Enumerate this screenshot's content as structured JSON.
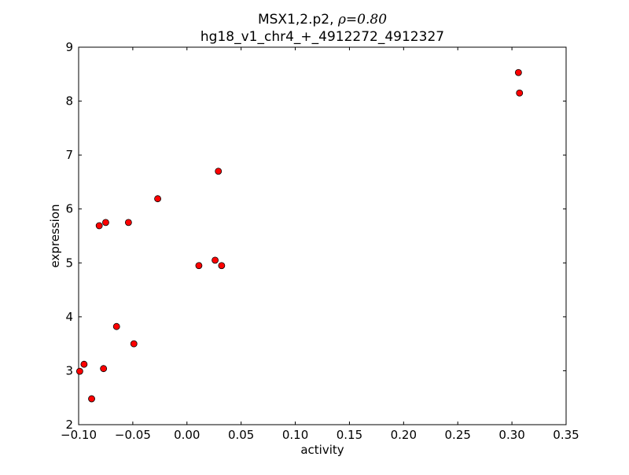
{
  "chart_data": {
    "type": "scatter",
    "title_prefix": "MSX1,2.p2, ",
    "title_math": "ρ=0.80",
    "subtitle": "hg18_v1_chr4_+_4912272_4912327",
    "xlabel": "activity",
    "ylabel": "expression",
    "xlim": [
      -0.1,
      0.35
    ],
    "ylim": [
      2,
      9
    ],
    "xticks": [
      -0.1,
      -0.05,
      0.0,
      0.05,
      0.1,
      0.15,
      0.2,
      0.25,
      0.3,
      0.35
    ],
    "xtick_labels": [
      "−0.10",
      "−0.05",
      "0.00",
      "0.05",
      "0.10",
      "0.15",
      "0.20",
      "0.25",
      "0.30",
      "0.35"
    ],
    "yticks": [
      2,
      3,
      4,
      5,
      6,
      7,
      8,
      9
    ],
    "ytick_labels": [
      "2",
      "3",
      "4",
      "5",
      "6",
      "7",
      "8",
      "9"
    ],
    "grid": false,
    "marker_color": "#ff0000",
    "points": [
      {
        "x": -0.099,
        "y": 2.99
      },
      {
        "x": -0.095,
        "y": 3.12
      },
      {
        "x": -0.088,
        "y": 2.48
      },
      {
        "x": -0.081,
        "y": 5.69
      },
      {
        "x": -0.075,
        "y": 5.75
      },
      {
        "x": -0.077,
        "y": 3.04
      },
      {
        "x": -0.065,
        "y": 3.82
      },
      {
        "x": -0.054,
        "y": 5.75
      },
      {
        "x": -0.049,
        "y": 3.5
      },
      {
        "x": -0.027,
        "y": 6.19
      },
      {
        "x": 0.011,
        "y": 4.95
      },
      {
        "x": 0.026,
        "y": 5.05
      },
      {
        "x": 0.029,
        "y": 6.7
      },
      {
        "x": 0.032,
        "y": 4.95
      },
      {
        "x": 0.306,
        "y": 8.53
      },
      {
        "x": 0.307,
        "y": 8.15
      }
    ]
  }
}
